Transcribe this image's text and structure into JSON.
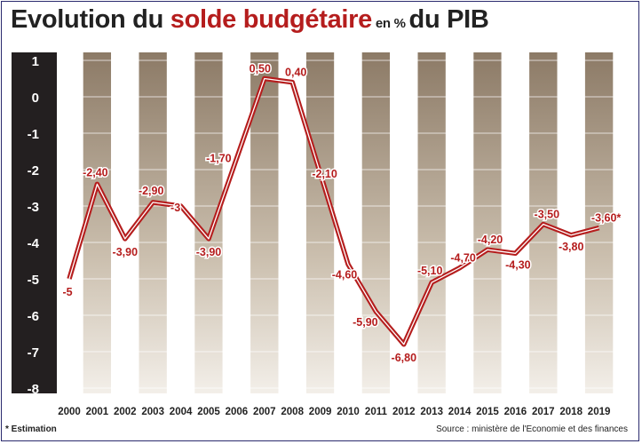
{
  "title": {
    "prefix": "Evolution du ",
    "accent": "solde budgétaire",
    "small": " en % ",
    "suffix": "du PIB"
  },
  "footnote": "* Estimation",
  "source": "Source : ministère de l'Economie et des finances",
  "colors": {
    "line": "#b51d1d",
    "stripe_dark": "#8c7a66",
    "stripe_light": "#ffffff",
    "axis_band": "#231f20",
    "label": "#b51d1d"
  },
  "chart_data": {
    "type": "line",
    "title": "Evolution du solde budgétaire en % du PIB",
    "xlabel": "",
    "ylabel": "",
    "categories": [
      "2000",
      "2001",
      "2002",
      "2003",
      "2004",
      "2005",
      "2006",
      "2007",
      "2008",
      "2009",
      "2010",
      "2011",
      "2012",
      "2013",
      "2014",
      "2015",
      "2016",
      "2017",
      "2018",
      "2019"
    ],
    "ylim": [
      -8,
      1
    ],
    "yticks": [
      "1",
      "0",
      "-1",
      "-2",
      "-3",
      "-4",
      "-5",
      "-6",
      "-7",
      "-8"
    ],
    "grid": true,
    "legend": "none",
    "series": [
      {
        "values": [
          -5,
          -2.4,
          -3.9,
          -2.9,
          -3,
          -3.9,
          -1.7,
          0.5,
          0.4,
          -2.1,
          -4.6,
          -5.9,
          -6.8,
          -5.1,
          -4.7,
          -4.2,
          -4.3,
          -3.5,
          -3.8,
          -3.6
        ],
        "labels": [
          "-5",
          "-2,40",
          "-3,90",
          "-2,90",
          "-3",
          "-3,90",
          "-1,70",
          "0,50",
          "0,40",
          "-2,10",
          "-4,60",
          "-5,90",
          "-6,80",
          "-5,10",
          "-4,70",
          "-4,20",
          "-4,30",
          "-3,50",
          "-3,80",
          "-3,60*"
        ]
      }
    ]
  }
}
